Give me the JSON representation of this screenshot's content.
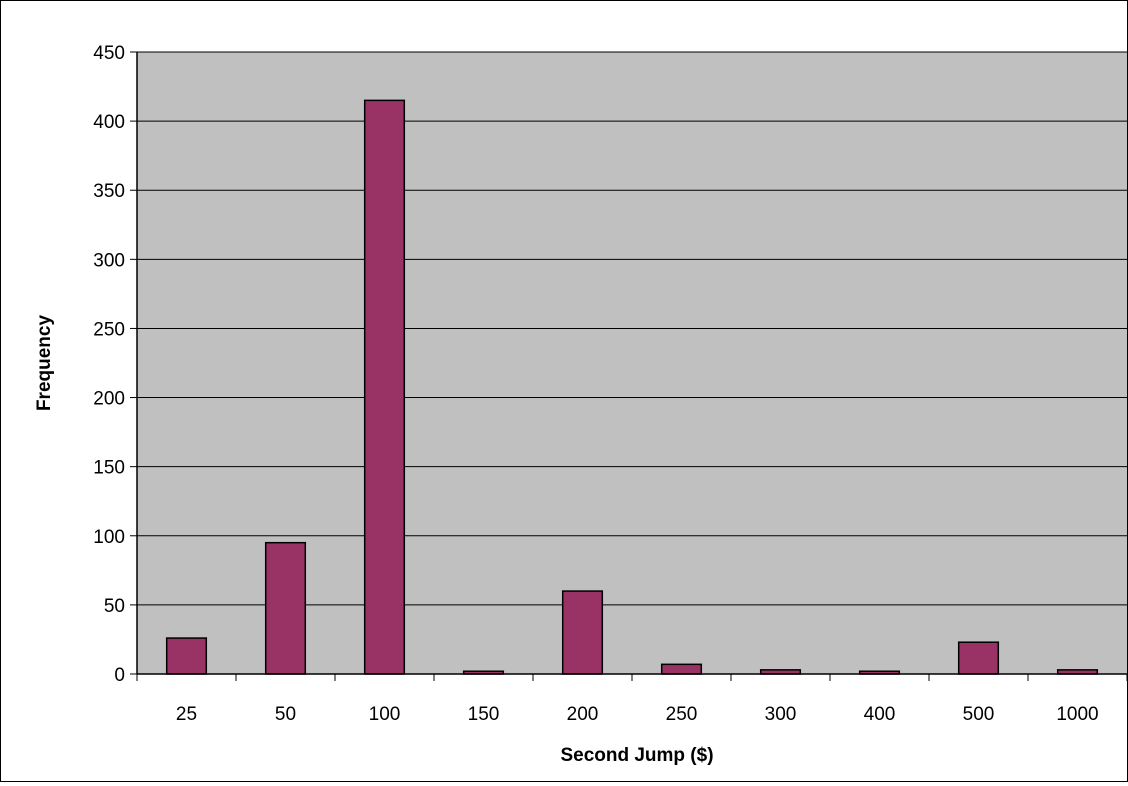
{
  "chart_data": {
    "type": "bar",
    "title": "",
    "xlabel": "Second Jump ($)",
    "ylabel": "Frequency",
    "categories": [
      "25",
      "50",
      "100",
      "150",
      "200",
      "250",
      "300",
      "400",
      "500",
      "1000"
    ],
    "values": [
      26,
      95,
      415,
      2,
      60,
      7,
      3,
      2,
      23,
      3
    ],
    "ylim": [
      0,
      450
    ],
    "yticks": [
      "0",
      "50",
      "100",
      "150",
      "200",
      "250",
      "300",
      "350",
      "400",
      "450"
    ],
    "grid": true,
    "legend": "none",
    "colors": {
      "bar_fill": "#993366",
      "bar_stroke": "#000000",
      "plot_background": "#c0c0c0",
      "gridline": "#000000"
    }
  }
}
